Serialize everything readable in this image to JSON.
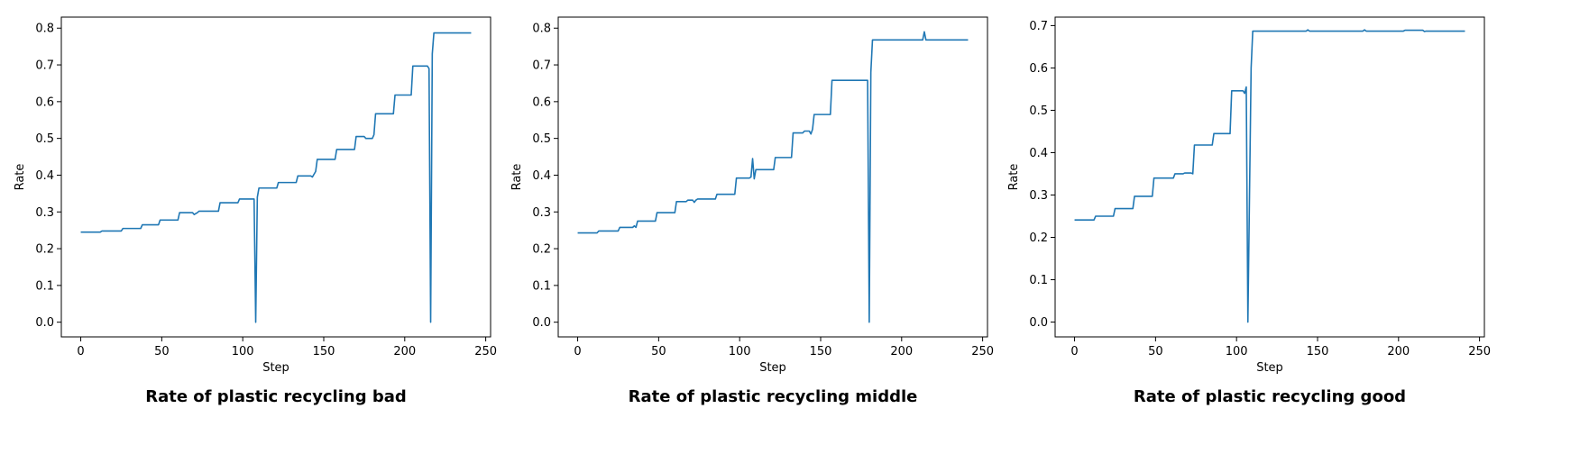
{
  "line_color": "#1f77b4",
  "chart_data": [
    {
      "type": "line",
      "title": "Rate of plastic recycling bad",
      "xlabel": "Step",
      "ylabel": "Rate",
      "xlim": [
        -12,
        253
      ],
      "ylim": [
        -0.04,
        0.83
      ],
      "xticks": [
        0,
        50,
        100,
        150,
        200,
        250
      ],
      "yticks": [
        0.0,
        0.1,
        0.2,
        0.3,
        0.4,
        0.5,
        0.6,
        0.7,
        0.8
      ],
      "grid": false,
      "series": [
        {
          "x": [
            0,
            12,
            13,
            25,
            26,
            37,
            38,
            48,
            49,
            60,
            61,
            69,
            70,
            72,
            73,
            85,
            86,
            97,
            98,
            106,
            107,
            108,
            109,
            110,
            121,
            122,
            133,
            134,
            142,
            143,
            145,
            146,
            157,
            158,
            169,
            170,
            175,
            176,
            180,
            181,
            182,
            193,
            194,
            204,
            205,
            214,
            215,
            216,
            217,
            218,
            241
          ],
          "y": [
            0.245,
            0.245,
            0.248,
            0.248,
            0.255,
            0.255,
            0.265,
            0.265,
            0.278,
            0.278,
            0.298,
            0.298,
            0.293,
            0.298,
            0.302,
            0.302,
            0.325,
            0.325,
            0.335,
            0.335,
            0.335,
            0.0,
            0.34,
            0.365,
            0.365,
            0.38,
            0.38,
            0.398,
            0.398,
            0.395,
            0.41,
            0.443,
            0.443,
            0.47,
            0.47,
            0.505,
            0.505,
            0.5,
            0.5,
            0.51,
            0.567,
            0.567,
            0.618,
            0.618,
            0.697,
            0.697,
            0.69,
            0.0,
            0.73,
            0.787,
            0.787
          ]
        }
      ]
    },
    {
      "type": "line",
      "title": "Rate of plastic recycling middle",
      "xlabel": "Step",
      "ylabel": "Rate",
      "xlim": [
        -12,
        253
      ],
      "ylim": [
        -0.04,
        0.83
      ],
      "xticks": [
        0,
        50,
        100,
        150,
        200,
        250
      ],
      "yticks": [
        0.0,
        0.1,
        0.2,
        0.3,
        0.4,
        0.5,
        0.6,
        0.7,
        0.8
      ],
      "grid": false,
      "series": [
        {
          "x": [
            0,
            12,
            13,
            25,
            26,
            34,
            35,
            36,
            37,
            48,
            49,
            60,
            61,
            67,
            68,
            71,
            72,
            73,
            74,
            85,
            86,
            97,
            98,
            106,
            107,
            108,
            109,
            110,
            121,
            122,
            132,
            133,
            139,
            140,
            143,
            144,
            145,
            146,
            156,
            157,
            179,
            180,
            181,
            182,
            183,
            213,
            214,
            215,
            216,
            241
          ],
          "y": [
            0.243,
            0.243,
            0.248,
            0.248,
            0.258,
            0.258,
            0.262,
            0.258,
            0.275,
            0.275,
            0.298,
            0.298,
            0.328,
            0.328,
            0.332,
            0.332,
            0.326,
            0.332,
            0.335,
            0.335,
            0.348,
            0.348,
            0.392,
            0.392,
            0.395,
            0.445,
            0.39,
            0.415,
            0.415,
            0.448,
            0.448,
            0.515,
            0.515,
            0.52,
            0.52,
            0.512,
            0.525,
            0.565,
            0.565,
            0.658,
            0.658,
            0.0,
            0.68,
            0.768,
            0.768,
            0.768,
            0.79,
            0.768,
            0.768,
            0.768
          ]
        }
      ]
    },
    {
      "type": "line",
      "title": "Rate of plastic recycling good",
      "xlabel": "Step",
      "ylabel": "Rate",
      "xlim": [
        -12,
        253
      ],
      "ylim": [
        -0.035,
        0.72
      ],
      "xticks": [
        0,
        50,
        100,
        150,
        200,
        250
      ],
      "yticks": [
        0.0,
        0.1,
        0.2,
        0.3,
        0.4,
        0.5,
        0.6,
        0.7
      ],
      "grid": false,
      "series": [
        {
          "x": [
            0,
            12,
            13,
            24,
            25,
            36,
            37,
            48,
            49,
            61,
            62,
            67,
            68,
            72,
            73,
            74,
            85,
            86,
            96,
            97,
            104,
            105,
            106,
            107,
            108,
            109,
            110,
            143,
            144,
            145,
            178,
            179,
            180,
            203,
            204,
            215,
            216,
            217,
            241
          ],
          "y": [
            0.241,
            0.241,
            0.25,
            0.25,
            0.268,
            0.268,
            0.297,
            0.297,
            0.34,
            0.34,
            0.35,
            0.35,
            0.352,
            0.352,
            0.35,
            0.418,
            0.418,
            0.445,
            0.445,
            0.546,
            0.546,
            0.54,
            0.555,
            0.0,
            0.3,
            0.6,
            0.687,
            0.687,
            0.69,
            0.687,
            0.687,
            0.69,
            0.687,
            0.687,
            0.689,
            0.689,
            0.686,
            0.687,
            0.687
          ]
        }
      ]
    }
  ]
}
